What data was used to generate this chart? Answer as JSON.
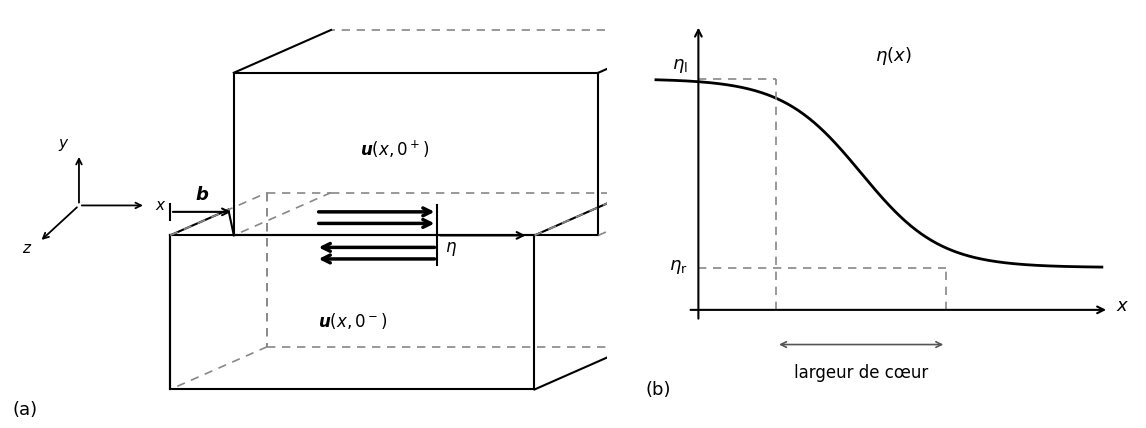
{
  "fig_width": 11.46,
  "fig_height": 4.28,
  "bg_color": "#ffffff",
  "label_a": "(a)",
  "label_b": "(b)",
  "u_top_label": "$\\boldsymbol{u}(x,0^+)$",
  "u_bot_label": "$\\boldsymbol{u}(x,0^-)$",
  "b_label": "$\\boldsymbol{b}$",
  "y_label": "$y$",
  "x_axis_label": "$x$",
  "z_label": "$z$",
  "eta_label": "$\\eta$",
  "eta_x_label": "$\\eta(x)$",
  "eta_l_label": "$\\eta_\\mathrm{l}$",
  "eta_r_label": "$\\eta_\\mathrm{r}$",
  "x_label": "$x$",
  "largeur_label": "largeur de cœur"
}
